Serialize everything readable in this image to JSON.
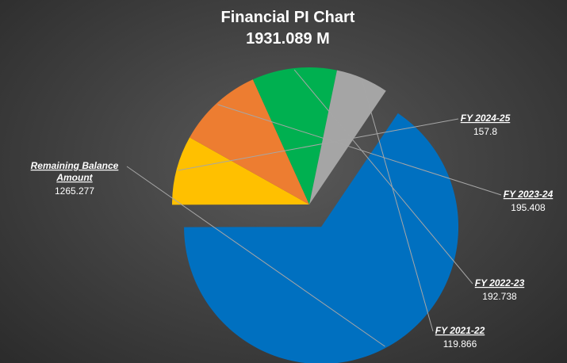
{
  "chart_data": {
    "type": "pie",
    "title": "Financial PI Chart",
    "subtitle": "1931.089 M",
    "slices": [
      {
        "label": "Remaining Balance Amount",
        "label_lines": [
          "Remaining Balance",
          "Amount"
        ],
        "value": 1265.277,
        "value_text": "1265.277",
        "color": "#0070c0",
        "exploded": true
      },
      {
        "label": "FY 2024-25",
        "label_lines": [
          "FY 2024-25"
        ],
        "value": 157.8,
        "value_text": "157.8",
        "color": "#ffc000",
        "exploded": false
      },
      {
        "label": "FY 2023-24",
        "label_lines": [
          "FY 2023-24"
        ],
        "value": 195.408,
        "value_text": "195.408",
        "color": "#ed7d31",
        "exploded": false
      },
      {
        "label": "FY 2022-23",
        "label_lines": [
          "FY 2022-23"
        ],
        "value": 192.738,
        "value_text": "192.738",
        "color": "#00b050",
        "exploded": false
      },
      {
        "label": "FY 2021-22",
        "label_lines": [
          "FY 2021-22"
        ],
        "value": 119.866,
        "value_text": "119.866",
        "color": "#a5a5a5",
        "exploded": false
      }
    ],
    "legend": "none",
    "data_labels": "outside with leader lines"
  }
}
